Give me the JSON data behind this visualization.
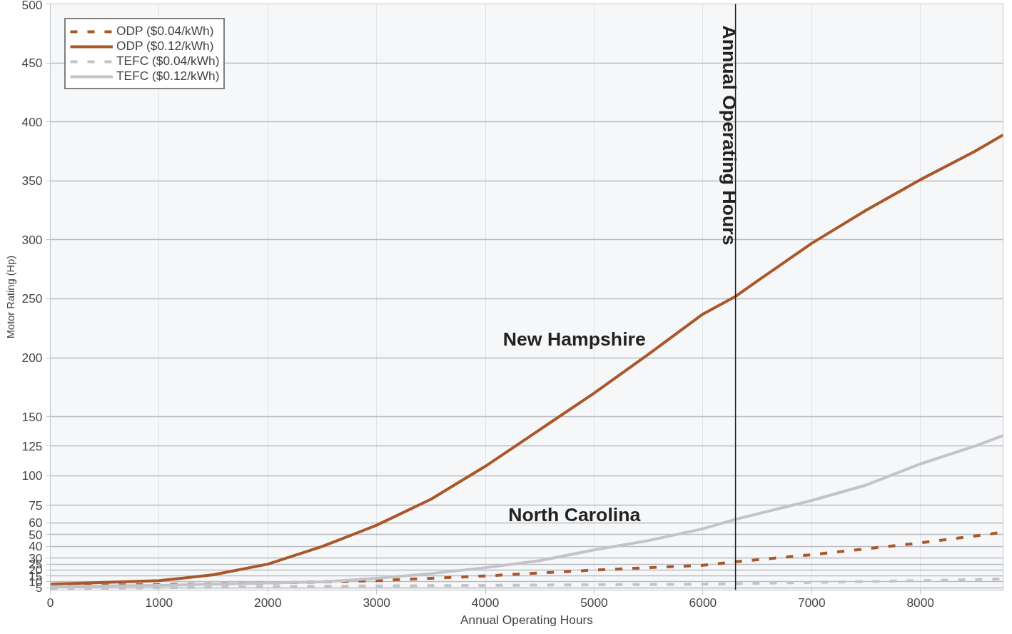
{
  "chart_data": {
    "type": "line",
    "xlabel": "Annual Operating Hours",
    "ylabel": "Motor Rating (Hp)",
    "xlim": [
      0,
      8760
    ],
    "ylim": [
      3,
      500
    ],
    "xticks": [
      0,
      1000,
      2000,
      3000,
      4000,
      5000,
      6000,
      7000,
      8000
    ],
    "yticks": [
      5,
      10,
      15,
      20,
      25,
      30,
      40,
      50,
      60,
      75,
      100,
      125,
      150,
      200,
      250,
      300,
      350,
      400,
      450,
      500
    ],
    "grid": true,
    "legend": "top left",
    "x": [
      0,
      1000,
      1500,
      2000,
      2500,
      3000,
      3500,
      4000,
      4500,
      5000,
      5500,
      6000,
      6300,
      6500,
      7000,
      7500,
      8000,
      8500,
      8760
    ],
    "series": [
      {
        "name": "ODP ($0.04/kWh)",
        "color": "#a9572b",
        "line_style": "dashed",
        "x": [
          0,
          1000,
          2000,
          3000,
          4000,
          5000,
          6000,
          6300,
          7000,
          8000,
          8760
        ],
        "values": [
          7,
          7.6,
          9,
          11,
          15,
          20,
          24,
          27,
          33,
          43,
          52
        ]
      },
      {
        "name": "ODP ($0.12/kWh)",
        "color": "#a9572b",
        "line_style": "solid",
        "values": [
          8,
          11,
          16,
          25,
          40,
          58,
          80,
          108,
          139,
          170,
          203,
          237,
          252,
          265,
          297,
          325,
          351,
          375,
          389
        ]
      },
      {
        "name": "TEFC ($0.04/kWh)",
        "color": "#c2c4c9",
        "line_style": "dashed",
        "x": [
          0,
          2000,
          4000,
          6000,
          7000,
          8000,
          8760
        ],
        "values": [
          4,
          6,
          7,
          8,
          9.5,
          11,
          12.5
        ]
      },
      {
        "name": "TEFC ($0.12/kWh)",
        "color": "#c2c4c9",
        "line_style": "solid",
        "x": [
          0,
          1000,
          2000,
          2500,
          3000,
          3500,
          4000,
          4500,
          5000,
          5500,
          6000,
          6300,
          7000,
          7500,
          8000,
          8500,
          8760
        ],
        "values": [
          6,
          7,
          9,
          10,
          13,
          17,
          22,
          28,
          37,
          45,
          55,
          63,
          79,
          92,
          110,
          125,
          134
        ]
      }
    ],
    "ref_lines": [
      {
        "axis": "x",
        "value": 6300,
        "label": "Annual Operating Hours",
        "color": "#222222"
      }
    ],
    "annotations": [
      "New Hampshire",
      "North Carolina"
    ]
  }
}
